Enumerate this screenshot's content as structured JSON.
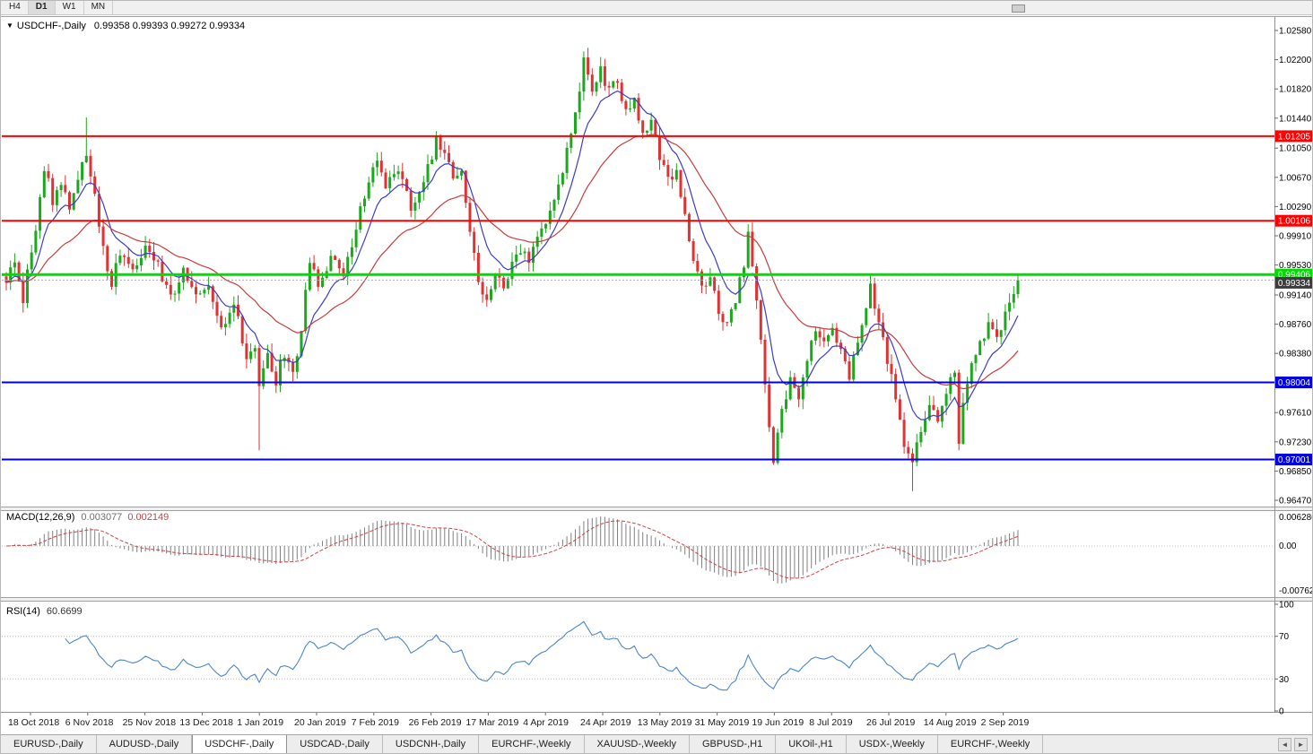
{
  "toolbar": {
    "timeframes": [
      {
        "label": "H4",
        "active": false
      },
      {
        "label": "D1",
        "active": true
      },
      {
        "label": "W1",
        "active": false
      },
      {
        "label": "MN",
        "active": false
      }
    ]
  },
  "chart": {
    "dropdown_icon": "▼",
    "title_symbol": "USDCHF-,Daily",
    "ohlc_text": "0.99358 0.99393 0.99272 0.99334",
    "colors": {
      "bull": "#1CA81C",
      "bear": "#E03232",
      "ma_fast": "#3C3CC8",
      "ma_slow": "#C83C3C",
      "macd_hist": "#808080",
      "macd_signal": "#CC4444",
      "rsi_line": "#4A86C8",
      "tag_current_bg": "#3C3C3C",
      "current_price_line": "#AAAAAA"
    },
    "y_axis_labels": [
      "1.02580",
      "1.02200",
      "1.01820",
      "1.01440",
      "1.01050",
      "1.00670",
      "1.00290",
      "0.99910",
      "0.99530",
      "0.99140",
      "0.98760",
      "0.98380",
      "0.97610",
      "0.97230",
      "0.96850",
      "0.96470"
    ],
    "levels": [
      {
        "label": "1.01205",
        "price": 1.01205,
        "color": "#FF0000",
        "width": 2
      },
      {
        "label": "1.00106",
        "price": 1.00106,
        "color": "#FF0000",
        "width": 2
      },
      {
        "label": "0.99406",
        "price": 0.99406,
        "color": "#00DD00",
        "width": 3
      },
      {
        "label": "0.98004",
        "price": 0.98004,
        "color": "#0000E0",
        "width": 2
      },
      {
        "label": "0.97001",
        "price": 0.97001,
        "color": "#0000E0",
        "width": 2
      }
    ],
    "current_price": {
      "label": "0.99334",
      "price": 0.99334
    },
    "x_axis_labels": [
      "18 Oct 2018",
      "6 Nov 2018",
      "25 Nov 2018",
      "13 Dec 2018",
      "1 Jan 2019",
      "20 Jan 2019",
      "7 Feb 2019",
      "26 Feb 2019",
      "17 Mar 2019",
      "4 Apr 2019",
      "24 Apr 2019",
      "13 May 2019",
      "31 May 2019",
      "19 Jun 2019",
      "8 Jul 2019",
      "26 Jul 2019",
      "14 Aug 2019",
      "2 Sep 2019"
    ]
  },
  "macd": {
    "label": "MACD(12,26,9)",
    "main_value": "0.003077",
    "signal_value": "0.002149",
    "axis_labels": {
      "top": "0.006286",
      "zero": "0.00",
      "bottom": "-0.00762"
    }
  },
  "rsi": {
    "label": "RSI(14)",
    "value": "60.6699",
    "axis_labels": [
      "100",
      "70",
      "30",
      "0"
    ],
    "axis_values": [
      100,
      70,
      30,
      0
    ],
    "level_lines": [
      70,
      30
    ]
  },
  "tabs": {
    "items": [
      {
        "label": "EURUSD-,Daily",
        "active": false
      },
      {
        "label": "AUDUSD-,Daily",
        "active": false
      },
      {
        "label": "USDCHF-,Daily",
        "active": true
      },
      {
        "label": "USDCAD-,Daily",
        "active": false
      },
      {
        "label": "USDCNH-,Daily",
        "active": false
      },
      {
        "label": "EURCHF-,Weekly",
        "active": false
      },
      {
        "label": "XAUUSD-,Weekly",
        "active": false
      },
      {
        "label": "GBPUSD-,H1",
        "active": false
      },
      {
        "label": "UKOil-,H1",
        "active": false
      },
      {
        "label": "USDX-,Weekly",
        "active": false
      },
      {
        "label": "EURCHF-,Weekly",
        "active": false
      }
    ],
    "scroll_left_icon": "◄",
    "scroll_right_icon": "►"
  },
  "chart_data": {
    "type": "candlestick",
    "symbol": "USDCHF",
    "period": "Daily",
    "title": "USDCHF-,Daily 0.99358 0.99393 0.99272 0.99334",
    "x_range": [
      "18 Oct 2018",
      "2 Sep 2019"
    ],
    "y_range": [
      0.9644,
      1.0275
    ],
    "legend_position": "none",
    "grid": false,
    "candle_count": 241,
    "last_close": 0.99334,
    "close_waypoints": [
      [
        0,
        0.993
      ],
      [
        2,
        0.9962
      ],
      [
        4,
        0.991
      ],
      [
        7,
        1.0
      ],
      [
        9,
        1.0078
      ],
      [
        11,
        1.0038
      ],
      [
        13,
        1.0062
      ],
      [
        15,
        1.0028
      ],
      [
        17,
        1.0068
      ],
      [
        19,
        1.009
      ],
      [
        21,
        1.004
      ],
      [
        23,
        0.9978
      ],
      [
        25,
        0.9925
      ],
      [
        27,
        0.9972
      ],
      [
        30,
        0.9942
      ],
      [
        33,
        0.9976
      ],
      [
        36,
        0.9952
      ],
      [
        39,
        0.9912
      ],
      [
        42,
        0.9946
      ],
      [
        45,
        0.9912
      ],
      [
        48,
        0.993
      ],
      [
        51,
        0.9872
      ],
      [
        54,
        0.9906
      ],
      [
        57,
        0.9832
      ],
      [
        59,
        0.9852
      ],
      [
        60,
        0.9795
      ],
      [
        62,
        0.9836
      ],
      [
        64,
        0.9802
      ],
      [
        66,
        0.984
      ],
      [
        68,
        0.9812
      ],
      [
        70,
        0.9868
      ],
      [
        72,
        0.9958
      ],
      [
        74,
        0.993
      ],
      [
        77,
        0.9964
      ],
      [
        80,
        0.9936
      ],
      [
        83,
        1.0
      ],
      [
        86,
        1.0068
      ],
      [
        88,
        1.0094
      ],
      [
        90,
        1.0058
      ],
      [
        93,
        1.008
      ],
      [
        96,
        1.003
      ],
      [
        99,
        1.0058
      ],
      [
        102,
        1.0118
      ],
      [
        104,
        1.0104
      ],
      [
        106,
        1.0064
      ],
      [
        108,
        1.0078
      ],
      [
        110,
        1.0
      ],
      [
        112,
        0.9936
      ],
      [
        114,
        0.9906
      ],
      [
        116,
        0.994
      ],
      [
        118,
        0.9926
      ],
      [
        121,
        0.9974
      ],
      [
        124,
        0.996
      ],
      [
        127,
        1.0
      ],
      [
        130,
        1.0032
      ],
      [
        133,
        1.0098
      ],
      [
        135,
        1.0146
      ],
      [
        137,
        1.0226
      ],
      [
        139,
        1.0172
      ],
      [
        141,
        1.0204
      ],
      [
        143,
        1.018
      ],
      [
        145,
        1.0194
      ],
      [
        147,
        1.015
      ],
      [
        149,
        1.0164
      ],
      [
        151,
        1.0122
      ],
      [
        153,
        1.014
      ],
      [
        155,
        1.0096
      ],
      [
        157,
        1.006
      ],
      [
        159,
        1.0078
      ],
      [
        161,
        1.002
      ],
      [
        163,
        0.9962
      ],
      [
        165,
        0.992
      ],
      [
        167,
        0.9944
      ],
      [
        169,
        0.9896
      ],
      [
        171,
        0.9872
      ],
      [
        173,
        0.9906
      ],
      [
        175,
        0.9956
      ],
      [
        176,
        1.0004
      ],
      [
        177,
        0.995
      ],
      [
        178,
        0.99
      ],
      [
        180,
        0.9798
      ],
      [
        182,
        0.97
      ],
      [
        184,
        0.9758
      ],
      [
        186,
        0.98
      ],
      [
        188,
        0.9776
      ],
      [
        190,
        0.983
      ],
      [
        192,
        0.9868
      ],
      [
        194,
        0.985
      ],
      [
        196,
        0.9874
      ],
      [
        198,
        0.984
      ],
      [
        200,
        0.9812
      ],
      [
        202,
        0.985
      ],
      [
        204,
        0.9894
      ],
      [
        205,
        0.9924
      ],
      [
        207,
        0.988
      ],
      [
        209,
        0.983
      ],
      [
        211,
        0.978
      ],
      [
        213,
        0.9722
      ],
      [
        215,
        0.9696
      ],
      [
        217,
        0.974
      ],
      [
        219,
        0.9768
      ],
      [
        221,
        0.9746
      ],
      [
        223,
        0.9788
      ],
      [
        225,
        0.9814
      ],
      [
        226,
        0.9722
      ],
      [
        227,
        0.9778
      ],
      [
        229,
        0.982
      ],
      [
        231,
        0.9848
      ],
      [
        233,
        0.9878
      ],
      [
        235,
        0.9856
      ],
      [
        237,
        0.9886
      ],
      [
        239,
        0.9918
      ],
      [
        240,
        0.99334
      ]
    ],
    "wick_overrides": [
      {
        "i": 19,
        "high": 1.0145
      },
      {
        "i": 60,
        "low": 0.9712
      },
      {
        "i": 102,
        "high": 1.0127
      },
      {
        "i": 137,
        "high": 1.0231
      },
      {
        "i": 182,
        "low": 0.9693
      },
      {
        "i": 215,
        "low": 0.9659
      },
      {
        "i": 226,
        "low": 0.9712
      }
    ],
    "indicators": {
      "ma_fast": {
        "type": "EMA",
        "period": 9
      },
      "ma_slow": {
        "type": "EMA",
        "period": 30
      },
      "macd": {
        "fast": 12,
        "slow": 26,
        "signal": 9,
        "current_main": 0.003077,
        "current_signal": 0.002149
      },
      "rsi": {
        "period": 14,
        "current": 60.6699,
        "levels": [
          70,
          30
        ]
      }
    }
  }
}
